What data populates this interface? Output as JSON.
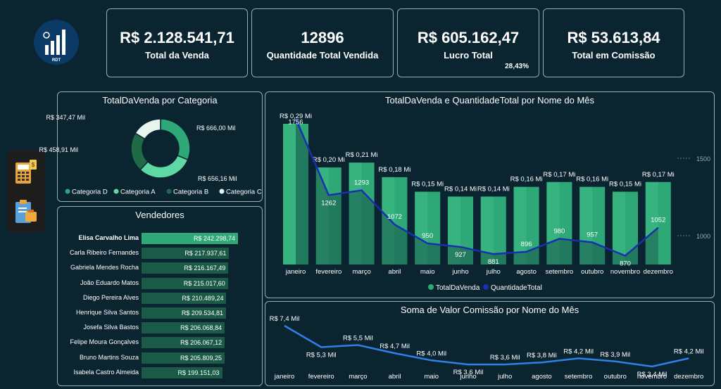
{
  "kpis": [
    {
      "value": "R$ 2.128.541,71",
      "label": "Total da Venda"
    },
    {
      "value": "12896",
      "label": "Quantidade Total Vendida"
    },
    {
      "value": "R$ 605.162,47",
      "label": "Lucro Total",
      "sub": "28,43%"
    },
    {
      "value": "R$ 53.613,84",
      "label": "Total em Comissão"
    }
  ],
  "logo": {
    "text": "RDT"
  },
  "sidebar": {
    "icons": [
      "calculator-icon",
      "clipboard-icon"
    ]
  },
  "colors": {
    "bg": "#0a2430",
    "green_dark": "#1f8a5a",
    "green_mid": "#2fa877",
    "green_light": "#5ed8a4",
    "line_blue": "#1a2fb0",
    "line_light_blue": "#2f80e8"
  },
  "chart_data": [
    {
      "type": "pie",
      "title": "TotalDaVenda por Categoria",
      "categories": [
        "Categoria D",
        "Categoria A",
        "Categoria B",
        "Categoria C"
      ],
      "values": [
        666.0,
        656.16,
        458.91,
        347.47
      ],
      "labels": [
        "R$ 666,00 Mil",
        "R$ 656,16 Mil",
        "R$ 458,91 Mil",
        "R$ 347,47 Mil"
      ],
      "colors": [
        "#2fa877",
        "#5ed8a4",
        "#1f6b46",
        "#e8f5ee"
      ],
      "legend": "bottom"
    },
    {
      "type": "bar",
      "title": "Vendedores",
      "categories": [
        "Elisa Carvalho Lima",
        "Carla Ribeiro Fernandes",
        "Gabriela Mendes Rocha",
        "João Eduardo Matos",
        "Diego Pereira Alves",
        "Henrique Silva Santos",
        "Josefa Silva Bastos",
        "Felipe Moura Gonçalves",
        "Bruno Martins Souza",
        "Isabela Castro Almeida"
      ],
      "values": [
        242298.74,
        217937.61,
        216167.49,
        215017.6,
        210489.24,
        209534.81,
        206068.84,
        206067.12,
        205809.25,
        199151.03
      ],
      "labels": [
        "R$ 242.298,74",
        "R$ 217.937,61",
        "R$ 216.167,49",
        "R$ 215.017,60",
        "R$ 210.489,24",
        "R$ 209.534,81",
        "R$ 206.068,84",
        "R$ 206.067,12",
        "R$ 205.809,25",
        "R$ 199.151,03"
      ]
    },
    {
      "type": "bar",
      "title": "TotalDaVenda e QuantidadeTotal por Nome do Mês",
      "categories": [
        "janeiro",
        "fevereiro",
        "março",
        "abril",
        "maio",
        "junho",
        "julho",
        "agosto",
        "setembro",
        "outubro",
        "novembro",
        "dezembro"
      ],
      "series": [
        {
          "name": "TotalDaVenda",
          "values": [
            0.29,
            0.2,
            0.21,
            0.18,
            0.15,
            0.14,
            0.14,
            0.16,
            0.17,
            0.16,
            0.15,
            0.17
          ],
          "labels": [
            "R$ 0,29 Mi",
            "R$ 0,20 Mi",
            "R$ 0,21 Mi",
            "R$ 0,18 Mi",
            "R$ 0,15 Mi",
            "R$ 0,14 Mi",
            "R$ 0,14 Mi",
            "R$ 0,16 Mi",
            "R$ 0,17 Mi",
            "R$ 0,16 Mi",
            "R$ 0,15 Mi",
            "R$ 0,17 Mi"
          ]
        },
        {
          "name": "QuantidadeTotal",
          "values": [
            1756,
            1262,
            1293,
            1072,
            950,
            927,
            881,
            896,
            980,
            957,
            870,
            1052
          ]
        }
      ],
      "y2_ticks": [
        "1500",
        "1000"
      ],
      "legend": "bottom"
    },
    {
      "type": "line",
      "title": "Soma de Valor Comissão por Nome do Mês",
      "categories": [
        "janeiro",
        "fevereiro",
        "março",
        "abril",
        "maio",
        "junho",
        "julho",
        "agosto",
        "setembro",
        "outubro",
        "novembro",
        "dezembro"
      ],
      "values": [
        7.4,
        5.3,
        5.5,
        4.7,
        4.0,
        3.6,
        3.6,
        3.8,
        4.2,
        3.9,
        3.4,
        4.2
      ],
      "labels": [
        "R$ 7,4 Mil",
        "R$ 5,3 Mil",
        "R$ 5,5 Mil",
        "R$ 4,7 Mil",
        "R$ 4,0 Mil",
        "R$ 3,6 Mil",
        "R$ 3,6 Mil",
        "R$ 3,8 Mil",
        "R$ 4,2 Mil",
        "R$ 3,9 Mil",
        "R$ 3,4 Mil",
        "R$ 4,2 Mil"
      ]
    }
  ]
}
